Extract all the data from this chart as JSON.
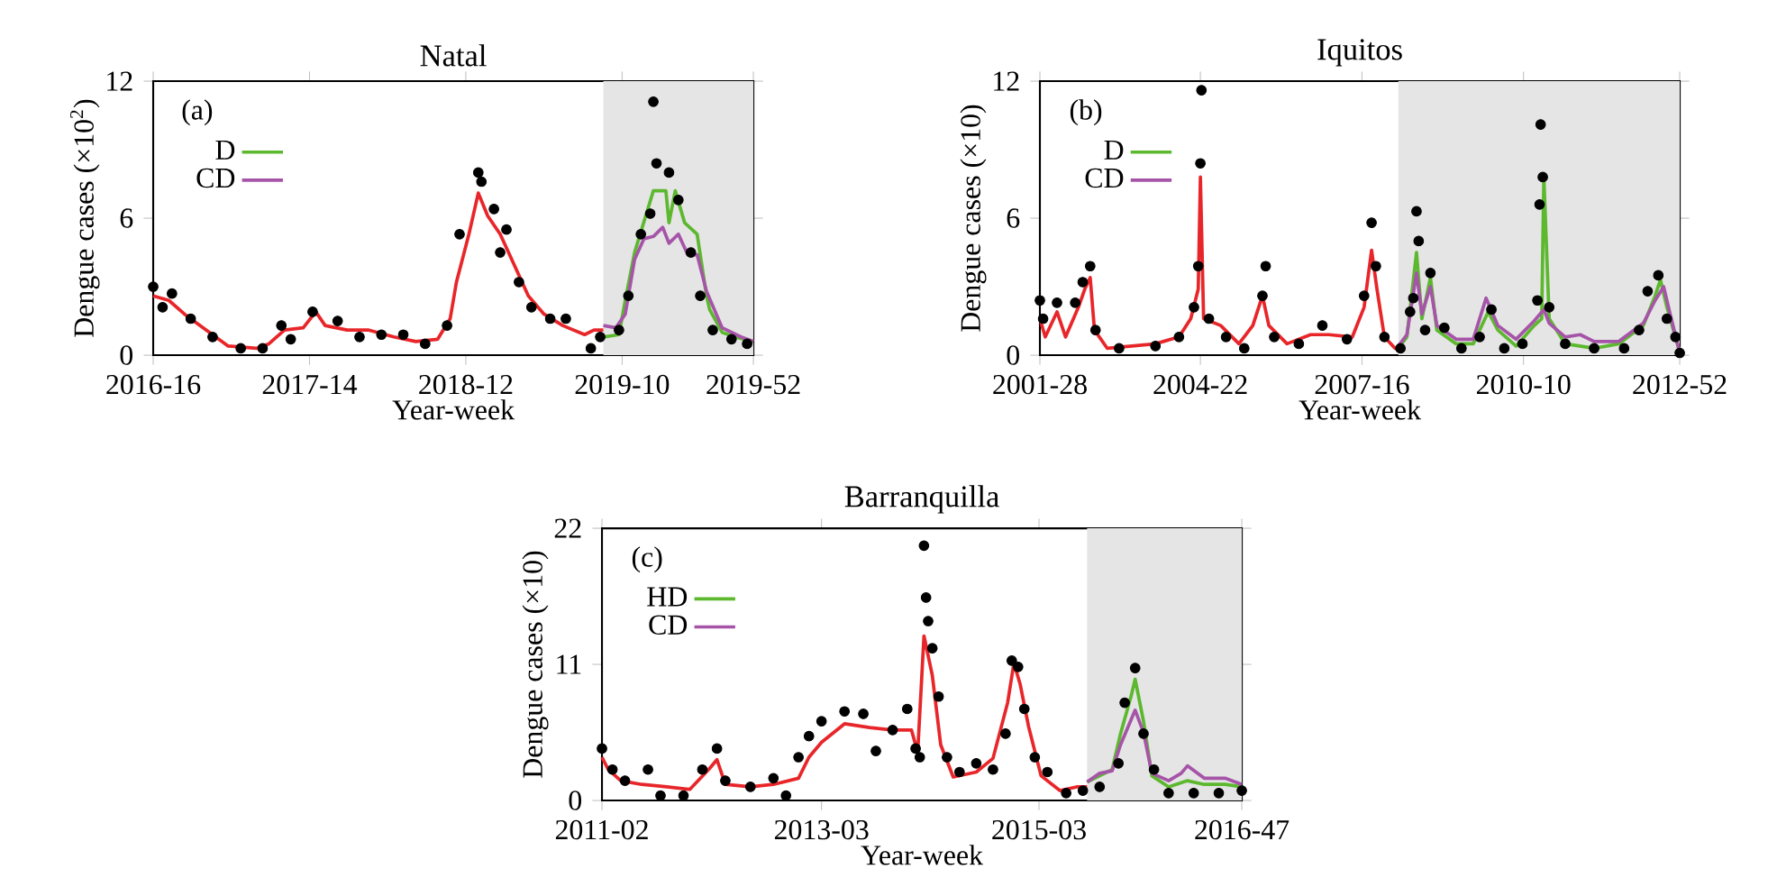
{
  "chart_data": [
    {
      "type": "line",
      "title": "Natal",
      "xlabel": "Year-week",
      "ylabel": "Dengue cases (×10$^{2}$)",
      "annotations": [
        "(a)"
      ],
      "xlim": [
        "2016-04-18",
        "2019-12-23"
      ],
      "xticks": [
        {
          "value": "2016-04-18",
          "label": "2016-16"
        },
        {
          "value": "2017-04-03",
          "label": "2017-14"
        },
        {
          "value": "2018-03-19",
          "label": "2018-12"
        },
        {
          "value": "2019-03-04",
          "label": "2019-10"
        },
        {
          "value": "2019-12-23",
          "label": "2019-52"
        }
      ],
      "ylim": [
        0,
        12
      ],
      "yticks": [
        0,
        6,
        12
      ],
      "legend": "top left",
      "bands": [
        {
          "axis": "x",
          "from": "2019-01-21",
          "to": "2019-12-23",
          "color": "#e5e5e5"
        }
      ],
      "series": [
        {
          "type": "scatter",
          "color": "#000000",
          "x": [
            "2016-04-18",
            "2016-05-09",
            "2016-05-30",
            "2016-07-11",
            "2016-08-29",
            "2016-10-31",
            "2016-12-19",
            "2017-01-30",
            "2017-02-20",
            "2017-04-10",
            "2017-06-05",
            "2017-07-24",
            "2017-09-11",
            "2017-10-30",
            "2017-12-18",
            "2018-02-05",
            "2018-03-05",
            "2018-04-16",
            "2018-04-23",
            "2018-05-21",
            "2018-06-04",
            "2018-06-18",
            "2018-07-16",
            "2018-08-13",
            "2018-09-24",
            "2018-10-29",
            "2018-12-24",
            "2019-01-14",
            "2019-02-25",
            "2019-03-18",
            "2019-04-15",
            "2019-05-06",
            "2019-05-13",
            "2019-05-20",
            "2019-06-17",
            "2019-07-08",
            "2019-08-05",
            "2019-08-26",
            "2019-09-23",
            "2019-11-04",
            "2019-12-09"
          ],
          "values": [
            3.0,
            2.1,
            2.7,
            1.6,
            0.8,
            0.3,
            0.3,
            1.3,
            0.7,
            1.9,
            1.5,
            0.8,
            0.9,
            0.9,
            0.5,
            1.3,
            5.3,
            8.0,
            7.6,
            6.4,
            4.5,
            5.5,
            3.2,
            2.1,
            1.6,
            1.6,
            0.3,
            0.8,
            1.1,
            2.6,
            5.3,
            6.2,
            11.1,
            8.4,
            8.0,
            6.8,
            4.5,
            2.6,
            1.1,
            0.7,
            0.5
          ]
        },
        {
          "color": "#e8262a",
          "x": [
            "2016-04-18",
            "2016-05-23",
            "2016-06-27",
            "2016-08-15",
            "2016-10-03",
            "2016-12-05",
            "2017-01-02",
            "2017-02-06",
            "2017-03-20",
            "2017-04-17",
            "2017-05-08",
            "2017-06-26",
            "2017-08-14",
            "2017-10-09",
            "2017-11-27",
            "2018-01-15",
            "2018-02-12",
            "2018-02-26",
            "2018-03-26",
            "2018-04-16",
            "2018-05-07",
            "2018-06-04",
            "2018-07-09",
            "2018-08-06",
            "2018-09-10",
            "2018-10-22",
            "2018-12-10",
            "2018-12-31",
            "2019-01-21"
          ],
          "values": [
            2.6,
            2.4,
            1.8,
            1.1,
            0.4,
            0.3,
            0.5,
            1.1,
            1.2,
            1.9,
            1.3,
            1.1,
            1.1,
            0.8,
            0.6,
            0.7,
            1.6,
            3.2,
            5.3,
            7.1,
            6.1,
            5.3,
            3.8,
            2.6,
            1.8,
            1.3,
            0.9,
            1.1,
            1.1
          ]
        },
        {
          "name": "D",
          "color": "#5cb82e",
          "x": [
            "2019-01-21",
            "2019-02-25",
            "2019-03-11",
            "2019-04-01",
            "2019-04-29",
            "2019-05-13",
            "2019-06-10",
            "2019-06-17",
            "2019-07-01",
            "2019-07-22",
            "2019-08-19",
            "2019-09-09",
            "2019-09-16",
            "2019-10-14",
            "2019-11-11",
            "2019-12-23"
          ],
          "values": [
            0.8,
            0.9,
            2.4,
            4.5,
            6.3,
            7.2,
            7.2,
            5.8,
            7.2,
            5.8,
            5.3,
            2.6,
            2.0,
            1.0,
            0.8,
            0.6
          ]
        },
        {
          "name": "CD",
          "color": "#a654a8",
          "x": [
            "2019-01-21",
            "2019-02-18",
            "2019-03-11",
            "2019-04-01",
            "2019-04-22",
            "2019-05-13",
            "2019-06-03",
            "2019-06-17",
            "2019-07-08",
            "2019-07-29",
            "2019-08-19",
            "2019-09-09",
            "2019-10-14",
            "2019-11-25",
            "2019-12-23"
          ],
          "values": [
            1.3,
            1.2,
            1.8,
            4.2,
            5.1,
            5.2,
            5.6,
            4.9,
            5.3,
            4.4,
            4.4,
            2.8,
            1.2,
            0.8,
            0.6
          ]
        }
      ]
    },
    {
      "type": "line",
      "title": "Iquitos",
      "xlabel": "Year-week",
      "ylabel": "Dengue cases (×10)",
      "annotations": [
        "(b)"
      ],
      "xlim": [
        "2001-07-09",
        "2012-12-24"
      ],
      "xticks": [
        {
          "value": "2001-07-09",
          "label": "2001-28"
        },
        {
          "value": "2004-05-24",
          "label": "2004-22"
        },
        {
          "value": "2007-04-16",
          "label": "2007-16"
        },
        {
          "value": "2010-03-08",
          "label": "2010-10"
        },
        {
          "value": "2012-12-24",
          "label": "2012-52"
        }
      ],
      "ylim": [
        0,
        12
      ],
      "yticks": [
        0,
        6,
        12
      ],
      "legend": "top left",
      "bands": [
        {
          "axis": "x",
          "from": "2007-12-10",
          "to": "2012-12-24",
          "color": "#e5e5e5"
        }
      ],
      "series": [
        {
          "type": "scatter",
          "color": "#000000",
          "x": [
            "2001-07-09",
            "2001-07-30",
            "2001-10-29",
            "2002-02-25",
            "2002-04-15",
            "2002-06-03",
            "2002-07-08",
            "2002-12-09",
            "2003-08-04",
            "2004-01-05",
            "2004-04-12",
            "2004-05-10",
            "2004-05-24",
            "2004-05-31",
            "2004-07-19",
            "2004-11-08",
            "2005-03-07",
            "2005-07-04",
            "2005-07-25",
            "2005-09-19",
            "2006-02-27",
            "2006-07-31",
            "2007-01-08",
            "2007-04-30",
            "2007-06-18",
            "2007-07-16",
            "2007-09-10",
            "2007-12-24",
            "2008-02-25",
            "2008-03-17",
            "2008-04-07",
            "2008-04-21",
            "2008-06-02",
            "2008-07-07",
            "2008-10-06",
            "2009-01-26",
            "2009-05-25",
            "2009-08-10",
            "2009-11-02",
            "2010-03-01",
            "2010-06-07",
            "2010-06-21",
            "2010-06-28",
            "2010-07-12",
            "2010-08-23",
            "2010-12-06",
            "2011-06-13",
            "2011-12-26",
            "2012-04-02",
            "2012-05-28",
            "2012-08-06",
            "2012-10-01",
            "2012-11-26",
            "2012-12-24"
          ],
          "values": [
            2.4,
            1.6,
            2.3,
            2.3,
            3.2,
            3.9,
            1.1,
            0.3,
            0.4,
            0.8,
            2.1,
            3.9,
            8.4,
            11.6,
            1.6,
            0.8,
            0.3,
            2.6,
            3.9,
            0.8,
            0.5,
            1.3,
            0.7,
            2.6,
            5.8,
            3.9,
            0.8,
            0.3,
            1.9,
            2.5,
            6.3,
            5.0,
            1.1,
            3.6,
            1.2,
            0.3,
            0.8,
            2.0,
            0.3,
            0.5,
            2.4,
            6.6,
            10.1,
            7.8,
            2.1,
            0.5,
            0.3,
            0.3,
            1.1,
            2.8,
            3.5,
            1.6,
            0.8,
            0.1
          ]
        },
        {
          "color": "#e8262a",
          "x": [
            "2001-07-09",
            "2001-08-13",
            "2001-10-29",
            "2001-12-24",
            "2002-03-18",
            "2002-04-29",
            "2002-06-03",
            "2002-07-01",
            "2002-09-23",
            "2003-03-03",
            "2003-08-04",
            "2004-01-05",
            "2004-03-22",
            "2004-05-10",
            "2004-05-24",
            "2004-06-14",
            "2004-10-04",
            "2005-01-31",
            "2005-05-02",
            "2005-07-04",
            "2005-08-15",
            "2005-12-12",
            "2006-05-15",
            "2006-09-11",
            "2007-02-12",
            "2007-04-30",
            "2007-06-18",
            "2007-07-23",
            "2007-09-10",
            "2007-11-19",
            "2007-12-10"
          ],
          "values": [
            1.6,
            0.8,
            1.9,
            0.8,
            2.1,
            2.9,
            3.4,
            1.1,
            0.3,
            0.4,
            0.5,
            0.8,
            1.6,
            2.9,
            7.8,
            1.6,
            1.3,
            0.5,
            1.3,
            2.6,
            1.3,
            0.5,
            0.9,
            0.9,
            0.8,
            2.1,
            4.6,
            2.9,
            0.8,
            0.3,
            0.3
          ]
        },
        {
          "name": "D",
          "color": "#5cb82e",
          "x": [
            "2007-12-10",
            "2008-02-04",
            "2008-04-07",
            "2008-05-12",
            "2008-07-07",
            "2008-08-18",
            "2008-12-22",
            "2009-04-13",
            "2009-07-20",
            "2009-09-21",
            "2010-01-18",
            "2010-05-17",
            "2010-07-05",
            "2010-07-19",
            "2010-08-23",
            "2010-12-06",
            "2011-06-13",
            "2011-11-21",
            "2012-04-30",
            "2012-07-16",
            "2012-08-20",
            "2012-10-01",
            "2012-12-17"
          ],
          "values": [
            0.3,
            0.8,
            4.5,
            1.6,
            3.4,
            1.1,
            0.5,
            0.5,
            1.9,
            1.1,
            0.4,
            1.3,
            1.6,
            7.8,
            1.6,
            0.5,
            0.3,
            0.5,
            1.3,
            2.6,
            3.3,
            2.1,
            0.3
          ]
        },
        {
          "name": "CD",
          "color": "#a654a8",
          "x": [
            "2007-12-10",
            "2008-02-04",
            "2008-04-07",
            "2008-05-12",
            "2008-07-07",
            "2008-08-18",
            "2008-12-22",
            "2009-04-13",
            "2009-07-06",
            "2009-09-21",
            "2010-01-18",
            "2010-05-17",
            "2010-07-19",
            "2010-08-23",
            "2010-12-06",
            "2011-03-14",
            "2011-06-13",
            "2011-11-21",
            "2012-04-30",
            "2012-07-16",
            "2012-09-10",
            "2012-10-15",
            "2012-12-17"
          ],
          "values": [
            0.4,
            0.9,
            3.6,
            1.8,
            3.0,
            1.3,
            0.7,
            0.7,
            2.5,
            1.3,
            0.7,
            1.5,
            2.0,
            1.4,
            0.8,
            0.9,
            0.6,
            0.6,
            1.4,
            2.4,
            3.0,
            2.0,
            0.3
          ]
        }
      ]
    },
    {
      "type": "line",
      "title": "Barranquilla",
      "xlabel": "Year-week",
      "ylabel": "Dengue cases (×10)",
      "annotations": [
        "(c)"
      ],
      "xlim": [
        "2011-01-10",
        "2016-11-21"
      ],
      "xticks": [
        {
          "value": "2011-01-10",
          "label": "2011-02"
        },
        {
          "value": "2013-01-14",
          "label": "2013-03"
        },
        {
          "value": "2015-01-12",
          "label": "2015-03"
        },
        {
          "value": "2016-11-21",
          "label": "2016-47"
        }
      ],
      "ylim": [
        0,
        22
      ],
      "yticks": [
        0,
        11,
        22
      ],
      "legend": "top left",
      "bands": [
        {
          "axis": "x",
          "from": "2015-06-22",
          "to": "2016-11-21",
          "color": "#e5e5e5"
        }
      ],
      "series": [
        {
          "type": "scatter",
          "color": "#000000",
          "x": [
            "2011-01-10",
            "2011-02-14",
            "2011-03-28",
            "2011-06-13",
            "2011-07-25",
            "2011-10-10",
            "2011-12-12",
            "2012-01-30",
            "2012-02-27",
            "2012-05-21",
            "2012-08-06",
            "2012-09-17",
            "2012-10-29",
            "2012-12-03",
            "2013-01-14",
            "2013-04-01",
            "2013-06-03",
            "2013-07-15",
            "2013-09-09",
            "2013-10-28",
            "2013-11-25",
            "2013-12-09",
            "2013-12-23",
            "2013-12-30",
            "2014-01-06",
            "2014-01-20",
            "2014-02-10",
            "2014-03-10",
            "2014-04-21",
            "2014-06-16",
            "2014-08-11",
            "2014-09-22",
            "2014-10-13",
            "2014-11-03",
            "2014-11-24",
            "2014-12-29",
            "2015-02-09",
            "2015-04-13",
            "2015-06-08",
            "2015-08-03",
            "2015-10-05",
            "2015-10-26",
            "2015-11-30",
            "2015-12-28",
            "2016-02-01",
            "2016-03-21",
            "2016-06-13",
            "2016-09-05",
            "2016-11-21"
          ],
          "values": [
            4.2,
            2.5,
            1.6,
            2.5,
            0.4,
            0.4,
            2.5,
            4.2,
            1.6,
            1.1,
            1.8,
            0.4,
            3.5,
            5.2,
            6.4,
            7.2,
            7.0,
            4.0,
            5.7,
            7.4,
            4.2,
            3.5,
            20.6,
            16.4,
            14.5,
            12.3,
            8.4,
            3.5,
            2.3,
            3.0,
            2.5,
            5.4,
            11.3,
            10.8,
            7.4,
            3.5,
            2.3,
            0.6,
            0.8,
            1.1,
            3.0,
            7.9,
            10.7,
            5.4,
            2.5,
            0.6,
            0.6,
            0.6,
            0.8
          ]
        },
        {
          "color": "#e8262a",
          "x": [
            "2011-01-10",
            "2011-01-31",
            "2011-03-14",
            "2011-05-23",
            "2011-08-15",
            "2011-10-31",
            "2012-01-02",
            "2012-01-30",
            "2012-02-27",
            "2012-05-21",
            "2012-08-06",
            "2012-10-29",
            "2012-12-03",
            "2013-01-14",
            "2013-04-01",
            "2013-06-24",
            "2013-09-09",
            "2013-11-11",
            "2013-12-02",
            "2013-12-23",
            "2014-01-20",
            "2014-02-17",
            "2014-03-31",
            "2014-06-16",
            "2014-08-11",
            "2014-09-29",
            "2014-10-20",
            "2014-11-10",
            "2014-12-08",
            "2015-01-19",
            "2015-03-23",
            "2015-05-18",
            "2015-06-22"
          ],
          "values": [
            3.5,
            2.5,
            1.6,
            1.3,
            1.1,
            0.9,
            2.5,
            3.3,
            1.3,
            1.1,
            1.3,
            1.8,
            3.5,
            4.7,
            6.2,
            5.9,
            5.7,
            5.7,
            3.9,
            13.3,
            10.1,
            4.5,
            1.9,
            2.3,
            3.4,
            7.9,
            11.1,
            9.4,
            6.0,
            2.0,
            0.8,
            1.1,
            1.1
          ]
        },
        {
          "name": "HD",
          "color": "#5cb82e",
          "x": [
            "2015-06-22",
            "2015-08-03",
            "2015-09-14",
            "2015-10-12",
            "2015-11-16",
            "2015-11-30",
            "2015-12-28",
            "2016-01-25",
            "2016-03-21",
            "2016-05-23",
            "2016-07-18",
            "2016-09-26",
            "2016-11-21"
          ],
          "values": [
            1.5,
            2.0,
            2.5,
            5.4,
            8.4,
            9.8,
            6.4,
            2.0,
            1.1,
            1.6,
            1.3,
            1.3,
            1.1
          ]
        },
        {
          "name": "CD",
          "color": "#a654a8",
          "x": [
            "2015-06-22",
            "2015-08-03",
            "2015-09-14",
            "2015-10-12",
            "2015-11-16",
            "2015-11-30",
            "2015-12-28",
            "2016-01-25",
            "2016-03-21",
            "2016-05-02",
            "2016-05-23",
            "2016-06-20",
            "2016-07-18",
            "2016-09-26",
            "2016-11-21"
          ],
          "values": [
            1.5,
            2.2,
            2.4,
            4.5,
            6.5,
            7.3,
            5.5,
            2.2,
            1.6,
            2.2,
            2.8,
            2.3,
            1.8,
            1.8,
            1.3
          ]
        }
      ]
    }
  ]
}
